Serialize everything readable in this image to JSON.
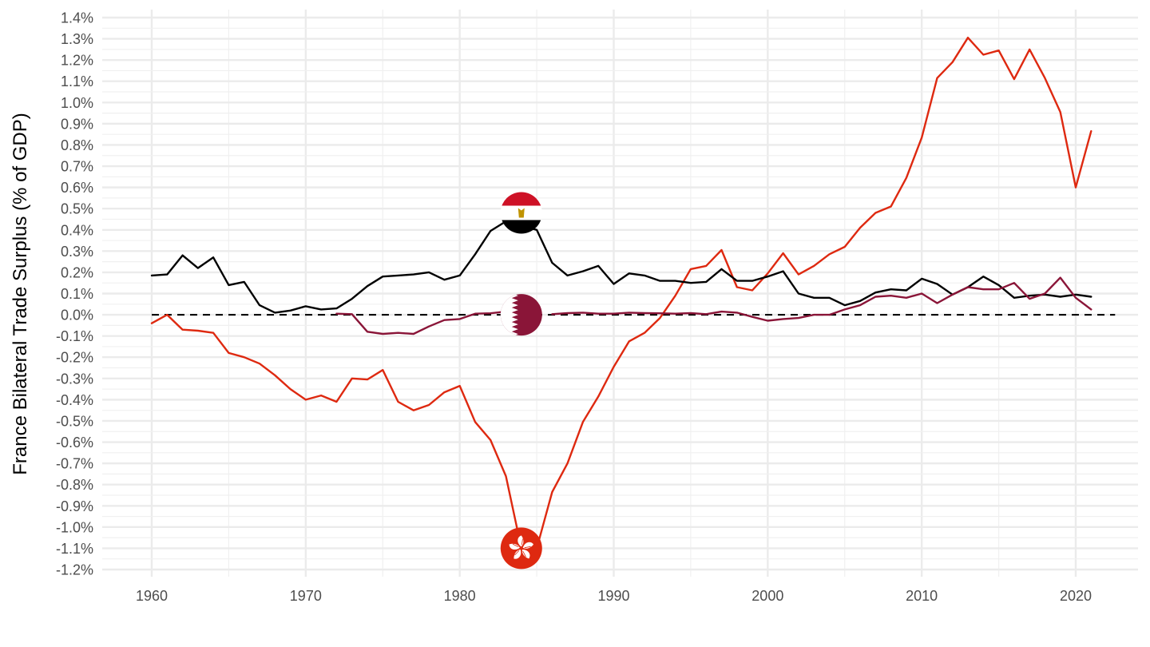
{
  "chart_data": {
    "type": "line",
    "title": "",
    "xlabel": "",
    "ylabel": "France Bilateral Trade Surplus (% of GDP)",
    "xlim": [
      1957,
      2024
    ],
    "ylim": [
      -1.2,
      1.4
    ],
    "x_ticks": [
      1960,
      1970,
      1980,
      1990,
      2000,
      2010,
      2020
    ],
    "x_tick_labels": [
      "1960",
      "1970",
      "1980",
      "1990",
      "2000",
      "2010",
      "2020"
    ],
    "y_ticks": [
      1.4,
      1.3,
      1.2,
      1.1,
      1.0,
      0.9,
      0.8,
      0.7,
      0.6,
      0.5,
      0.4,
      0.3,
      0.2,
      0.1,
      0.0,
      -0.1,
      -0.2,
      -0.3,
      -0.4,
      -0.5,
      -0.6,
      -0.7,
      -0.8,
      -0.9,
      -1.0,
      -1.1,
      -1.2
    ],
    "y_tick_labels": [
      "1.4%",
      "1.3%",
      "1.2%",
      "1.1%",
      "1.0%",
      "0.9%",
      "0.8%",
      "0.7%",
      "0.6%",
      "0.5%",
      "0.4%",
      "0.3%",
      "0.2%",
      "0.1%",
      "0.0%",
      "-0.1%",
      "-0.2%",
      "-0.3%",
      "-0.4%",
      "-0.5%",
      "-0.6%",
      "-0.7%",
      "-0.8%",
      "-0.9%",
      "-1.0%",
      "-1.1%",
      "-1.2%"
    ],
    "grid": true,
    "legend": "none",
    "reference_line": {
      "y": 0.0,
      "style": "dashed",
      "color": "#000000"
    },
    "series": [
      {
        "color": "#de2910",
        "flag_icon": "hong-kong-flag-icon",
        "flag_at": {
          "x": 1984,
          "y": -1.1
        },
        "points": [
          [
            1960,
            -0.04
          ],
          [
            1961,
            0.0
          ],
          [
            1962,
            -0.07
          ],
          [
            1963,
            -0.075
          ],
          [
            1964,
            -0.085
          ],
          [
            1965,
            -0.18
          ],
          [
            1966,
            -0.2
          ],
          [
            1967,
            -0.23
          ],
          [
            1968,
            -0.285
          ],
          [
            1969,
            -0.35
          ],
          [
            1970,
            -0.4
          ],
          [
            1971,
            -0.38
          ],
          [
            1972,
            -0.41
          ],
          [
            1973,
            -0.3
          ],
          [
            1974,
            -0.305
          ],
          [
            1975,
            -0.26
          ],
          [
            1976,
            -0.41
          ],
          [
            1977,
            -0.45
          ],
          [
            1978,
            -0.425
          ],
          [
            1979,
            -0.365
          ],
          [
            1980,
            -0.335
          ],
          [
            1981,
            -0.505
          ],
          [
            1982,
            -0.59
          ],
          [
            1983,
            -0.76
          ],
          [
            1984,
            -1.1
          ],
          [
            1985,
            -1.1
          ],
          [
            1986,
            -0.835
          ],
          [
            1987,
            -0.7
          ],
          [
            1988,
            -0.505
          ],
          [
            1989,
            -0.385
          ],
          [
            1990,
            -0.245
          ],
          [
            1991,
            -0.125
          ],
          [
            1992,
            -0.085
          ],
          [
            1993,
            -0.015
          ],
          [
            1994,
            0.09
          ],
          [
            1995,
            0.215
          ],
          [
            1996,
            0.23
          ],
          [
            1997,
            0.305
          ],
          [
            1998,
            0.13
          ],
          [
            1999,
            0.115
          ],
          [
            2000,
            0.195
          ],
          [
            2001,
            0.29
          ],
          [
            2002,
            0.19
          ],
          [
            2003,
            0.23
          ],
          [
            2004,
            0.285
          ],
          [
            2005,
            0.32
          ],
          [
            2006,
            0.41
          ],
          [
            2007,
            0.48
          ],
          [
            2008,
            0.51
          ],
          [
            2009,
            0.645
          ],
          [
            2010,
            0.835
          ],
          [
            2011,
            1.115
          ],
          [
            2012,
            1.19
          ],
          [
            2013,
            1.305
          ],
          [
            2014,
            1.225
          ],
          [
            2015,
            1.245
          ],
          [
            2016,
            1.11
          ],
          [
            2017,
            1.25
          ],
          [
            2018,
            1.115
          ],
          [
            2019,
            0.955
          ],
          [
            2020,
            0.6
          ],
          [
            2021,
            0.865
          ]
        ]
      },
      {
        "color": "#000000",
        "flag_icon": "egypt-flag-icon",
        "flag_at": {
          "x": 1984,
          "y": 0.48
        },
        "points": [
          [
            1960,
            0.185
          ],
          [
            1961,
            0.19
          ],
          [
            1962,
            0.28
          ],
          [
            1963,
            0.22
          ],
          [
            1964,
            0.27
          ],
          [
            1965,
            0.14
          ],
          [
            1966,
            0.155
          ],
          [
            1967,
            0.045
          ],
          [
            1968,
            0.01
          ],
          [
            1969,
            0.02
          ],
          [
            1970,
            0.04
          ],
          [
            1971,
            0.025
          ],
          [
            1972,
            0.03
          ],
          [
            1973,
            0.075
          ],
          [
            1974,
            0.135
          ],
          [
            1975,
            0.18
          ],
          [
            1976,
            0.185
          ],
          [
            1977,
            0.19
          ],
          [
            1978,
            0.2
          ],
          [
            1979,
            0.165
          ],
          [
            1980,
            0.185
          ],
          [
            1981,
            0.285
          ],
          [
            1982,
            0.395
          ],
          [
            1983,
            0.44
          ],
          [
            1984,
            0.42
          ],
          [
            1985,
            0.4
          ],
          [
            1986,
            0.245
          ],
          [
            1987,
            0.185
          ],
          [
            1988,
            0.205
          ],
          [
            1989,
            0.23
          ],
          [
            1990,
            0.145
          ],
          [
            1991,
            0.195
          ],
          [
            1992,
            0.185
          ],
          [
            1993,
            0.16
          ],
          [
            1994,
            0.16
          ],
          [
            1995,
            0.15
          ],
          [
            1996,
            0.155
          ],
          [
            1997,
            0.215
          ],
          [
            1998,
            0.16
          ],
          [
            1999,
            0.16
          ],
          [
            2000,
            0.18
          ],
          [
            2001,
            0.205
          ],
          [
            2002,
            0.1
          ],
          [
            2003,
            0.08
          ],
          [
            2004,
            0.08
          ],
          [
            2005,
            0.045
          ],
          [
            2006,
            0.065
          ],
          [
            2007,
            0.105
          ],
          [
            2008,
            0.12
          ],
          [
            2009,
            0.115
          ],
          [
            2010,
            0.17
          ],
          [
            2011,
            0.145
          ],
          [
            2012,
            0.095
          ],
          [
            2013,
            0.13
          ],
          [
            2014,
            0.18
          ],
          [
            2015,
            0.14
          ],
          [
            2016,
            0.08
          ],
          [
            2017,
            0.09
          ],
          [
            2018,
            0.095
          ],
          [
            2019,
            0.085
          ],
          [
            2020,
            0.095
          ],
          [
            2021,
            0.085
          ]
        ]
      },
      {
        "color": "#8a1538",
        "flag_icon": "qatar-flag-icon",
        "flag_at": {
          "x": 1984,
          "y": 0.0
        },
        "points": [
          [
            1972,
            0.005
          ],
          [
            1973,
            0.003
          ],
          [
            1974,
            -0.08
          ],
          [
            1975,
            -0.09
          ],
          [
            1976,
            -0.085
          ],
          [
            1977,
            -0.09
          ],
          [
            1978,
            -0.055
          ],
          [
            1979,
            -0.025
          ],
          [
            1980,
            -0.02
          ],
          [
            1981,
            0.005
          ],
          [
            1982,
            0.007
          ],
          [
            1983,
            0.015
          ],
          [
            1984,
            null
          ],
          [
            1986,
            0.003
          ],
          [
            1987,
            0.008
          ],
          [
            1988,
            0.01
          ],
          [
            1989,
            0.005
          ],
          [
            1990,
            0.005
          ],
          [
            1991,
            0.01
          ],
          [
            1992,
            0.008
          ],
          [
            1993,
            0.007
          ],
          [
            1994,
            0.005
          ],
          [
            1995,
            0.008
          ],
          [
            1996,
            0.003
          ],
          [
            1997,
            0.015
          ],
          [
            1998,
            0.01
          ],
          [
            1999,
            -0.01
          ],
          [
            2000,
            -0.028
          ],
          [
            2001,
            -0.02
          ],
          [
            2002,
            -0.015
          ],
          [
            2003,
            0.0
          ],
          [
            2004,
            0.0
          ],
          [
            2005,
            0.025
          ],
          [
            2006,
            0.045
          ],
          [
            2007,
            0.085
          ],
          [
            2008,
            0.09
          ],
          [
            2009,
            0.08
          ],
          [
            2010,
            0.1
          ],
          [
            2011,
            0.055
          ],
          [
            2012,
            0.095
          ],
          [
            2013,
            0.13
          ],
          [
            2014,
            0.12
          ],
          [
            2015,
            0.12
          ],
          [
            2016,
            0.15
          ],
          [
            2017,
            0.075
          ],
          [
            2018,
            0.1
          ],
          [
            2019,
            0.175
          ],
          [
            2020,
            0.08
          ],
          [
            2021,
            0.025
          ]
        ]
      }
    ]
  }
}
